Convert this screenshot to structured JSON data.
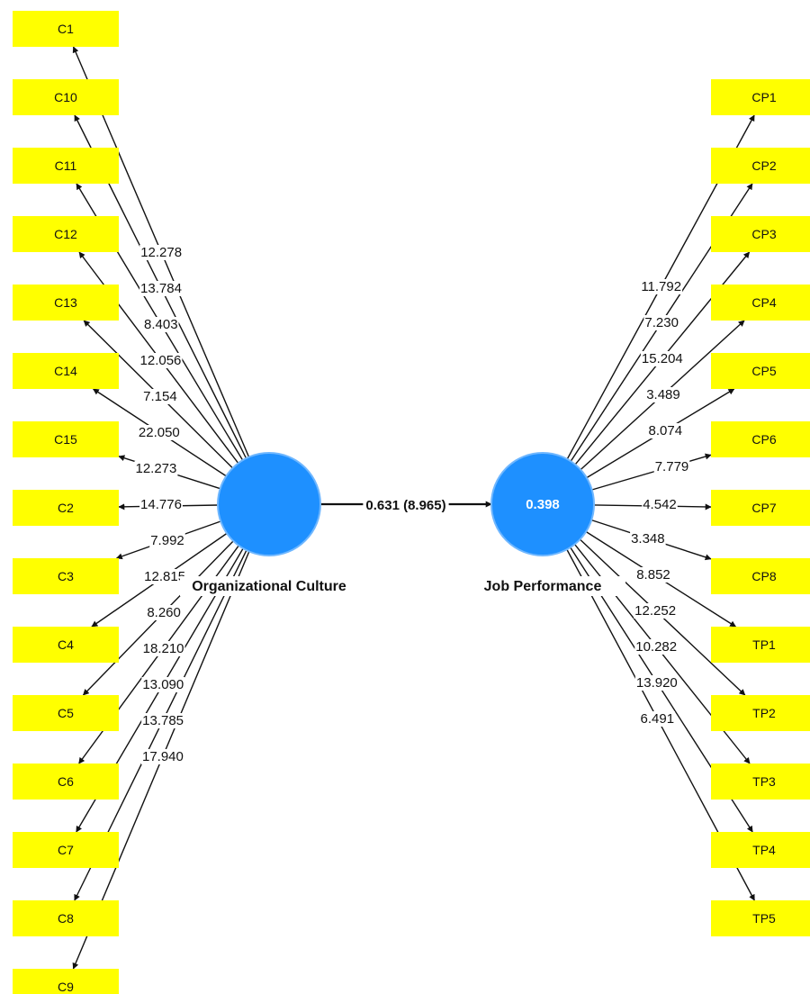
{
  "colors": {
    "indicator_fill": "#ffff00",
    "construct_fill": "#1e90ff",
    "construct_stroke": "#6fb7ff",
    "line": "#111111",
    "background": "#ffffff"
  },
  "constructs": {
    "culture": {
      "name": "Organizational Culture",
      "value": ""
    },
    "performance": {
      "name": "Job Performance",
      "value": "0.398"
    }
  },
  "structural_path": {
    "label": "0.631 (8.965)"
  },
  "culture_indicators": [
    {
      "label": "C1",
      "loading": "12.278"
    },
    {
      "label": "C10",
      "loading": "13.784"
    },
    {
      "label": "C11",
      "loading": "8.403"
    },
    {
      "label": "C12",
      "loading": "12.056"
    },
    {
      "label": "C13",
      "loading": "7.154"
    },
    {
      "label": "C14",
      "loading": "22.050"
    },
    {
      "label": "C15",
      "loading": "12.273"
    },
    {
      "label": "C2",
      "loading": "14.776"
    },
    {
      "label": "C3",
      "loading": "7.992"
    },
    {
      "label": "C4",
      "loading": "12.815"
    },
    {
      "label": "C5",
      "loading": "8.260"
    },
    {
      "label": "C6",
      "loading": "18.210"
    },
    {
      "label": "C7",
      "loading": "13.090"
    },
    {
      "label": "C8",
      "loading": "13.785"
    },
    {
      "label": "C9",
      "loading": "17.940"
    }
  ],
  "performance_indicators": [
    {
      "label": "CP1",
      "loading": "11.792"
    },
    {
      "label": "CP2",
      "loading": "7.230"
    },
    {
      "label": "CP3",
      "loading": "15.204"
    },
    {
      "label": "CP4",
      "loading": "3.489"
    },
    {
      "label": "CP5",
      "loading": "8.074"
    },
    {
      "label": "CP6",
      "loading": "7.779"
    },
    {
      "label": "CP7",
      "loading": "4.542"
    },
    {
      "label": "CP8",
      "loading": "3.348"
    },
    {
      "label": "TP1",
      "loading": "8.852"
    },
    {
      "label": "TP2",
      "loading": "12.252"
    },
    {
      "label": "TP3",
      "loading": "10.282"
    },
    {
      "label": "TP4",
      "loading": "13.920"
    },
    {
      "label": "TP5",
      "loading": "6.491"
    }
  ]
}
